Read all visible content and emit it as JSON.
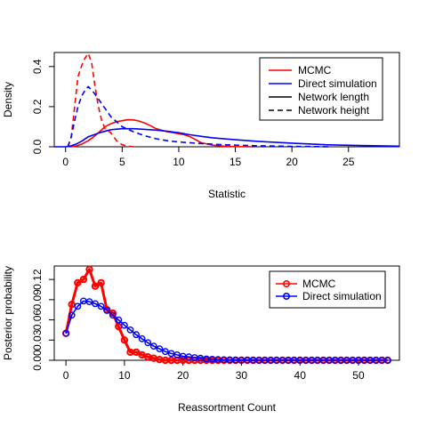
{
  "chart_data": [
    {
      "type": "line",
      "xlabel": "Statistic",
      "ylabel": "Density",
      "xlim": [
        -1,
        29.5
      ],
      "ylim": [
        0,
        0.47
      ],
      "xticks": [
        0,
        5,
        10,
        15,
        20,
        25
      ],
      "yticks": [
        0.0,
        0.2,
        0.4
      ],
      "ytick_labels": [
        "0.0",
        "0.2",
        "0.4"
      ],
      "legend_position": "top-right",
      "legend": [
        {
          "label": "MCMC",
          "color": "#ff0000",
          "line": "solid"
        },
        {
          "label": "Direct simulation",
          "color": "#0000ff",
          "line": "solid"
        },
        {
          "label": "Network length",
          "color": "#000000",
          "line": "solid"
        },
        {
          "label": "Network height",
          "color": "#000000",
          "line": "dashed"
        }
      ],
      "series": [
        {
          "color": "#ff0000",
          "dash": false,
          "x": [
            0.5,
            1,
            1.5,
            2,
            2.5,
            3,
            3.5,
            4,
            4.5,
            5,
            5.5,
            6,
            6.5,
            7,
            7.5,
            8,
            9,
            10,
            10.5,
            11,
            11.5,
            12,
            13,
            14,
            15,
            16.5
          ],
          "y": [
            0.0,
            0.005,
            0.015,
            0.03,
            0.05,
            0.075,
            0.1,
            0.115,
            0.125,
            0.13,
            0.135,
            0.134,
            0.128,
            0.118,
            0.105,
            0.09,
            0.075,
            0.065,
            0.06,
            0.05,
            0.035,
            0.02,
            0.008,
            0.003,
            0.001,
            0.0
          ]
        },
        {
          "color": "#0000ff",
          "dash": false,
          "x": [
            -1,
            0,
            0.5,
            1,
            1.5,
            2,
            3,
            4,
            5,
            6,
            7,
            8,
            9,
            10,
            11,
            12,
            13,
            15,
            17,
            20,
            23,
            26,
            29.5
          ],
          "y": [
            0.0,
            0.0,
            0.005,
            0.015,
            0.03,
            0.05,
            0.07,
            0.085,
            0.09,
            0.09,
            0.087,
            0.083,
            0.077,
            0.07,
            0.06,
            0.052,
            0.045,
            0.035,
            0.027,
            0.018,
            0.01,
            0.006,
            0.003
          ]
        },
        {
          "color": "#ff0000",
          "dash": true,
          "x": [
            0.2,
            0.5,
            0.8,
            1.1,
            1.4,
            1.7,
            2.0,
            2.3,
            2.6,
            2.9,
            3.2,
            3.5,
            4.0,
            4.5,
            5.0,
            5.5,
            6.0
          ],
          "y": [
            0.0,
            0.05,
            0.2,
            0.35,
            0.4,
            0.44,
            0.465,
            0.42,
            0.3,
            0.2,
            0.13,
            0.09,
            0.07,
            0.03,
            0.01,
            0.003,
            0.0
          ]
        },
        {
          "color": "#0000ff",
          "dash": true,
          "x": [
            0.2,
            0.5,
            0.8,
            1.1,
            1.4,
            1.7,
            2.0,
            2.5,
            3.0,
            3.5,
            4.0,
            4.5,
            5.0,
            6.0,
            7.0,
            8.0,
            9.0,
            10.0,
            12.0,
            14.0,
            17.0,
            20.0,
            23.5
          ],
          "y": [
            0.0,
            0.05,
            0.13,
            0.2,
            0.25,
            0.28,
            0.3,
            0.27,
            0.23,
            0.19,
            0.15,
            0.125,
            0.1,
            0.075,
            0.055,
            0.04,
            0.03,
            0.024,
            0.016,
            0.01,
            0.005,
            0.002,
            0.0
          ]
        }
      ]
    },
    {
      "type": "line",
      "xlabel": "Reassortment Count",
      "ylabel": "Posterior probability",
      "xlim": [
        -2,
        57
      ],
      "ylim": [
        0,
        0.14
      ],
      "xticks": [
        0,
        10,
        20,
        30,
        40,
        50
      ],
      "yticks": [
        0.0,
        0.03,
        0.06,
        0.09,
        0.12
      ],
      "ytick_labels": [
        "0.00",
        "0.03",
        "0.06",
        "0.09",
        "0.12"
      ],
      "legend_position": "top-right",
      "legend": [
        {
          "label": "MCMC",
          "color": "#ff0000"
        },
        {
          "label": "Direct simulation",
          "color": "#0000ff"
        }
      ],
      "x": [
        0,
        1,
        2,
        3,
        4,
        5,
        6,
        7,
        8,
        9,
        10,
        11,
        12,
        13,
        14,
        15,
        16,
        17,
        18,
        19,
        20,
        21,
        22,
        23,
        24,
        25,
        26,
        27,
        28,
        29,
        30,
        31,
        32,
        33,
        34,
        35,
        36,
        37,
        38,
        39,
        40,
        41,
        42,
        43,
        44,
        45,
        46,
        47,
        48,
        49,
        50,
        51,
        52,
        53,
        54,
        55
      ],
      "series": [
        {
          "name": "MCMC",
          "color": "#ff0000",
          "thick": true,
          "values": [
            0.04,
            0.083,
            0.115,
            0.12,
            0.135,
            0.11,
            0.115,
            0.075,
            0.07,
            0.05,
            0.03,
            0.012,
            0.012,
            0.008,
            0.005,
            0.003,
            0.001,
            0,
            0,
            0,
            0,
            0,
            0,
            0,
            0,
            0,
            0,
            0,
            0,
            0,
            0,
            0,
            0,
            0,
            0,
            0,
            0,
            0,
            0,
            0,
            0,
            0,
            0,
            0,
            0,
            0,
            0,
            0,
            0,
            0,
            0,
            0,
            0,
            0,
            0,
            0
          ]
        },
        {
          "name": "Direct simulation",
          "color": "#0000ff",
          "thick": false,
          "values": [
            0.04,
            0.067,
            0.08,
            0.088,
            0.087,
            0.084,
            0.08,
            0.074,
            0.067,
            0.06,
            0.052,
            0.045,
            0.038,
            0.032,
            0.026,
            0.021,
            0.017,
            0.013,
            0.01,
            0.008,
            0.006,
            0.005,
            0.004,
            0.003,
            0.002,
            0.0015,
            0.001,
            0.0008,
            0.0006,
            0.0004,
            0.0003,
            0.0002,
            0.0001,
            0,
            0,
            0,
            0,
            0,
            0,
            0,
            0,
            0,
            0,
            0,
            0,
            0,
            0,
            0,
            0,
            0,
            0,
            0,
            0,
            0,
            0,
            0
          ]
        }
      ]
    }
  ]
}
